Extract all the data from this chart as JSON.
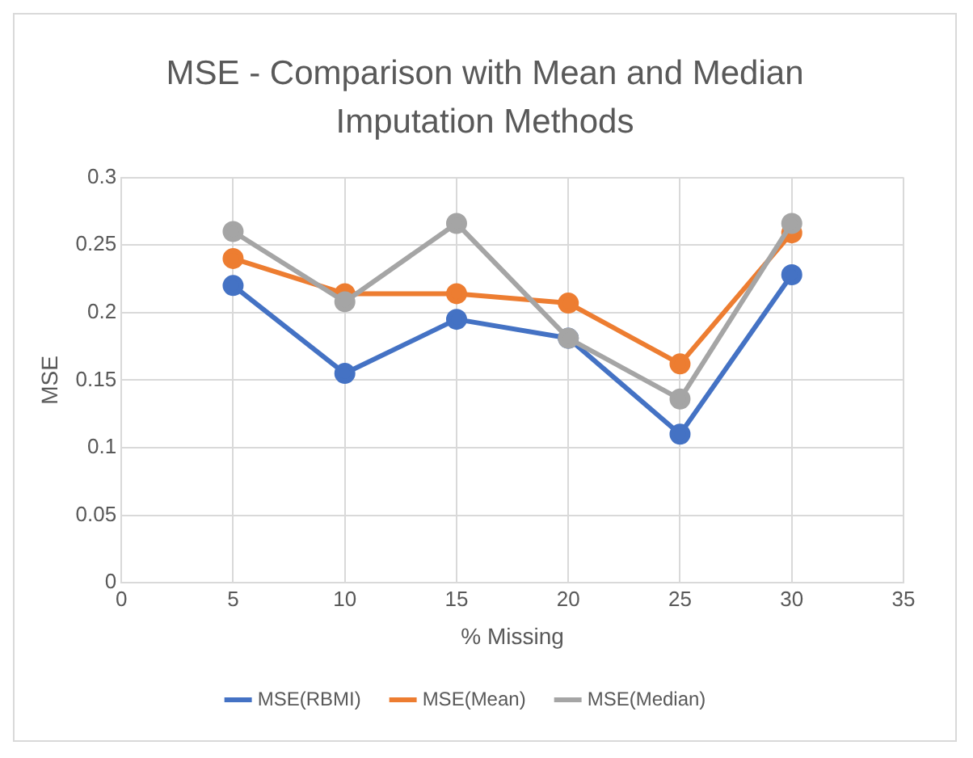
{
  "chart_data": {
    "type": "line",
    "title": "MSE - Comparison with Mean and Median Imputation Methods",
    "xlabel": "% Missing",
    "ylabel": "MSE",
    "x": [
      5,
      10,
      15,
      20,
      25,
      30
    ],
    "series": [
      {
        "name": "MSE(RBMI)",
        "color": "#4472c4",
        "values": [
          0.22,
          0.155,
          0.195,
          0.181,
          0.11,
          0.228
        ]
      },
      {
        "name": "MSE(Mean)",
        "color": "#ed7d31",
        "values": [
          0.24,
          0.214,
          0.214,
          0.207,
          0.162,
          0.259
        ]
      },
      {
        "name": "MSE(Median)",
        "color": "#a5a5a5",
        "values": [
          0.26,
          0.208,
          0.266,
          0.181,
          0.136,
          0.266
        ]
      }
    ],
    "xlim": [
      0,
      35
    ],
    "xticks": [
      0,
      5,
      10,
      15,
      20,
      25,
      30,
      35
    ],
    "ylim": [
      0,
      0.3
    ],
    "yticks": [
      0,
      0.05,
      0.1,
      0.15,
      0.2,
      0.25,
      0.3
    ],
    "grid": true,
    "legend": "bottom",
    "marker": "circle",
    "line_style": "solid"
  }
}
